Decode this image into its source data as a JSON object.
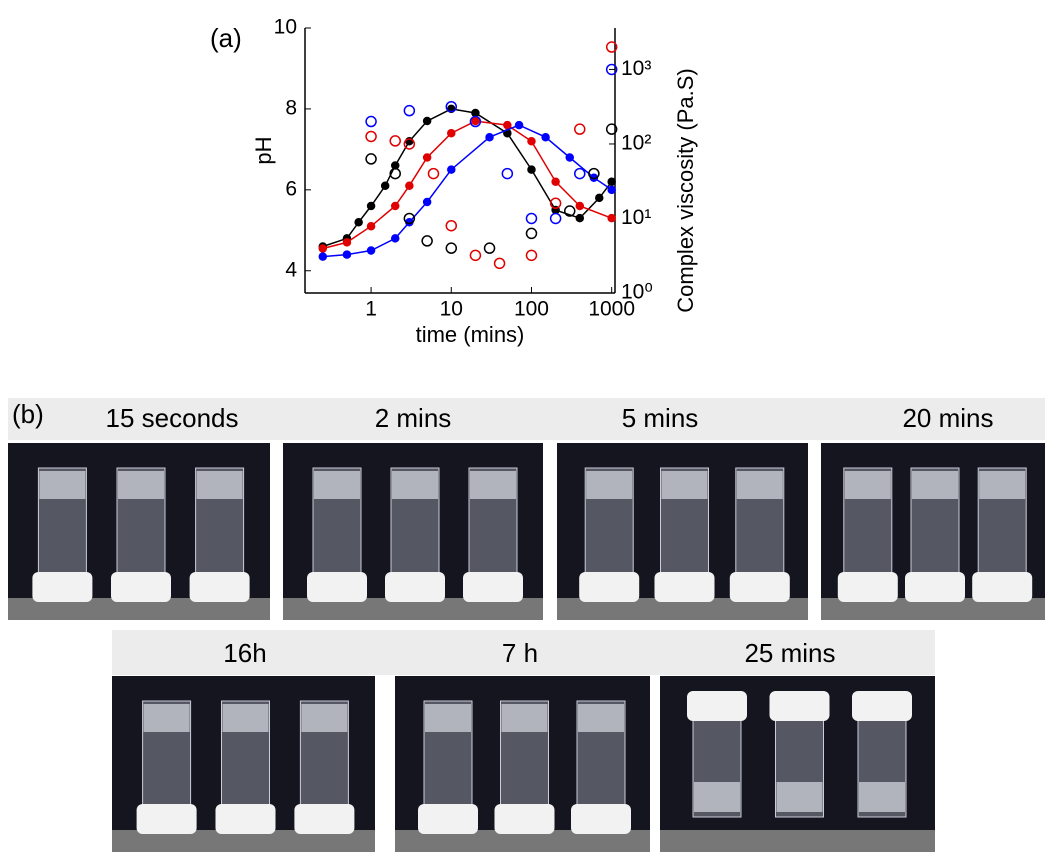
{
  "chart_data": {
    "type": "scatter",
    "panel_label": "(a)",
    "x_label": "time (mins)",
    "y_label": "pH",
    "y2_label": "Complex viscosity (Pa.S)",
    "xscale": "log",
    "y2scale": "log",
    "xlim": [
      0.15,
      1100
    ],
    "xticks": [
      1,
      10,
      100,
      1000
    ],
    "ylim": [
      3.45,
      10
    ],
    "yticks": [
      4,
      6,
      8,
      10
    ],
    "y2lim": [
      1,
      3600
    ],
    "y2ticks": [
      {
        "value": 1,
        "label": "10⁰"
      },
      {
        "value": 10,
        "label": "10¹"
      },
      {
        "value": 100,
        "label": "10²"
      },
      {
        "value": 1000,
        "label": "10³"
      }
    ],
    "series": [
      {
        "color": "#000000",
        "marker": "filled",
        "x": [
          0.25,
          0.5,
          0.7,
          1,
          1.5,
          2,
          3,
          5,
          10,
          20,
          50,
          100,
          200,
          400,
          700,
          1000
        ],
        "values": [
          4.6,
          4.8,
          5.2,
          5.6,
          6.1,
          6.6,
          7.2,
          7.7,
          8.0,
          7.9,
          7.4,
          6.5,
          5.5,
          5.3,
          5.8,
          6.2
        ]
      },
      {
        "color": "#e00000",
        "marker": "filled",
        "x": [
          0.25,
          0.5,
          1,
          2,
          3,
          5,
          10,
          20,
          50,
          100,
          200,
          400,
          1000
        ],
        "values": [
          4.55,
          4.7,
          5.1,
          5.6,
          6.1,
          6.8,
          7.4,
          7.7,
          7.6,
          7.2,
          6.2,
          5.6,
          5.3
        ]
      },
      {
        "color": "#0000ff",
        "marker": "filled",
        "x": [
          0.25,
          0.5,
          1,
          2,
          3,
          5,
          10,
          30,
          70,
          150,
          300,
          600,
          1000
        ],
        "values": [
          4.35,
          4.4,
          4.5,
          4.8,
          5.2,
          5.7,
          6.5,
          7.3,
          7.6,
          7.3,
          6.8,
          6.3,
          6.0
        ]
      },
      {
        "color": "#000000",
        "marker": "open",
        "axis": "y2",
        "x": [
          1,
          2,
          3,
          5,
          10,
          30,
          100,
          300,
          600,
          1000
        ],
        "values": [
          63,
          40,
          10,
          5,
          4,
          4,
          6.3,
          12.6,
          40,
          158
        ]
      },
      {
        "color": "#e00000",
        "marker": "open",
        "axis": "y2",
        "x": [
          1,
          2,
          3,
          6,
          10,
          20,
          40,
          100,
          200,
          400,
          1000
        ],
        "values": [
          126,
          110,
          100,
          40,
          8,
          3.2,
          2.5,
          3.2,
          16,
          158,
          2000
        ]
      },
      {
        "color": "#0000ff",
        "marker": "open",
        "axis": "y2",
        "x": [
          1,
          3,
          10,
          20,
          50,
          100,
          200,
          400,
          1000
        ],
        "values": [
          200,
          280,
          316,
          200,
          40,
          10,
          10,
          40,
          1000
        ]
      }
    ]
  },
  "panel_b": {
    "label": "(b)",
    "photos": [
      {
        "label": "15 seconds"
      },
      {
        "label": "2 mins"
      },
      {
        "label": "5 mins"
      },
      {
        "label": "20 mins"
      },
      {
        "label": "16h"
      },
      {
        "label": "7 h"
      },
      {
        "label": "25 mins"
      }
    ]
  }
}
